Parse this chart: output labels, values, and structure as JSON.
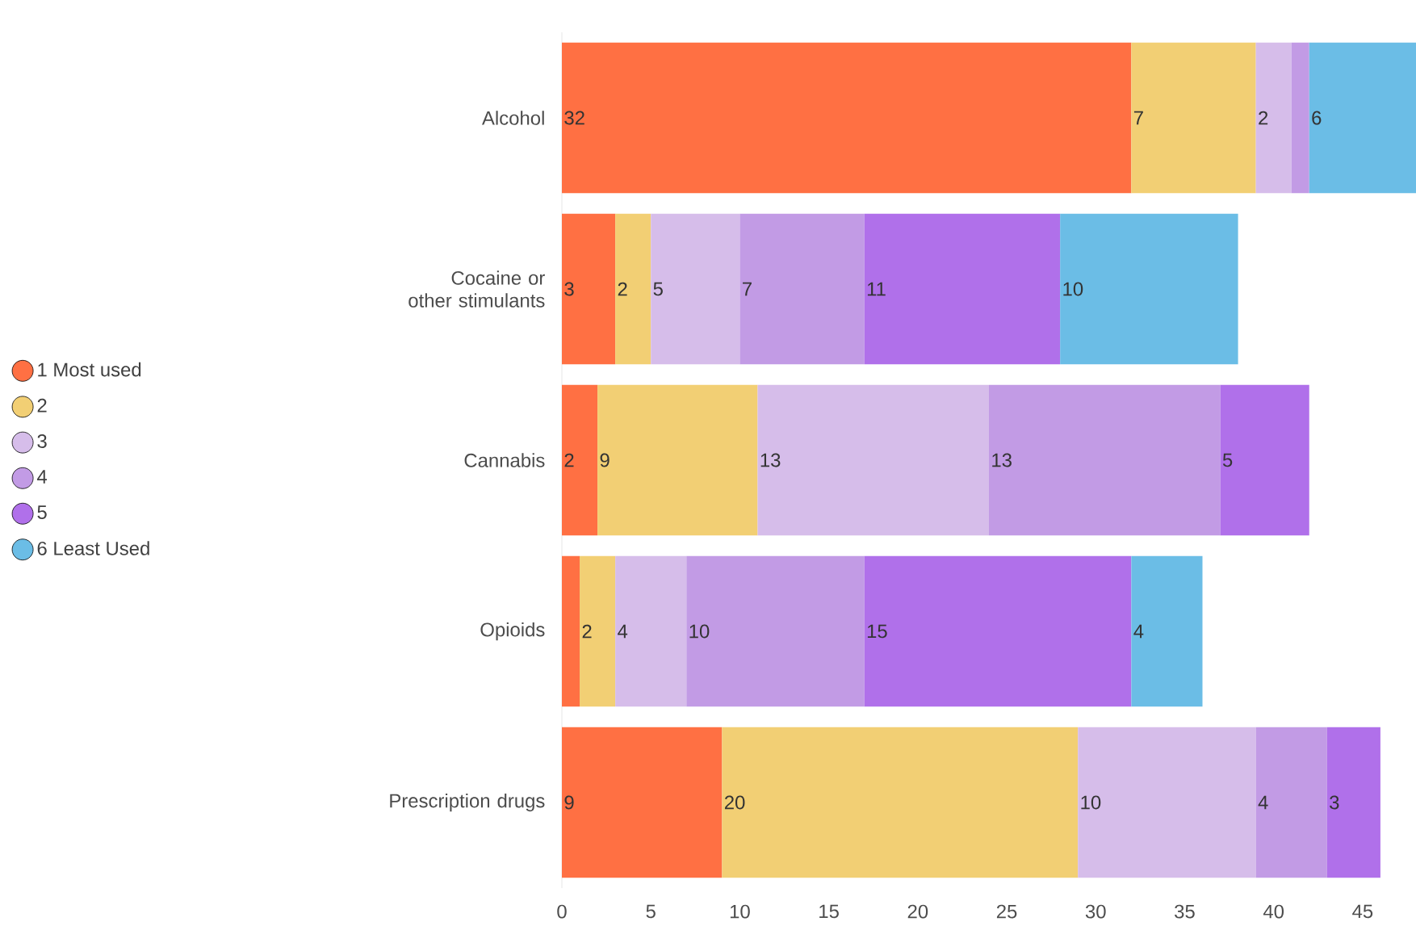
{
  "chart_data": {
    "type": "bar",
    "orientation": "horizontal",
    "stacked": true,
    "categories": [
      "Alcohol",
      "Cocaine or other stimulants",
      "Cannabis",
      "Opioids",
      "Prescription drugs"
    ],
    "series": [
      {
        "name": "1 Most used",
        "color": "#ff7043",
        "values": [
          32,
          3,
          2,
          1,
          9
        ],
        "value_labels": [
          "32",
          "3",
          "2",
          null,
          "9"
        ]
      },
      {
        "name": "2",
        "color": "#f2cf74",
        "values": [
          7,
          2,
          9,
          2,
          20
        ],
        "value_labels": [
          "7",
          "2",
          "9",
          "2",
          "20"
        ]
      },
      {
        "name": "3",
        "color": "#d6bdea",
        "values": [
          2,
          5,
          13,
          4,
          10
        ],
        "value_labels": [
          "2",
          "5",
          "13",
          "4",
          "10"
        ]
      },
      {
        "name": "4",
        "color": "#c29be5",
        "values": [
          1,
          7,
          13,
          10,
          4
        ],
        "value_labels": [
          null,
          "7",
          "13",
          "10",
          "4"
        ]
      },
      {
        "name": "5",
        "color": "#b070ea",
        "values": [
          null,
          11,
          5,
          15,
          3
        ],
        "value_labels": [
          null,
          "11",
          "5",
          "15",
          "3"
        ]
      },
      {
        "name": "6 Least Used",
        "color": "#6bbde6",
        "values": [
          6,
          10,
          null,
          4,
          null
        ],
        "value_labels": [
          "6",
          "10",
          null,
          "4",
          null
        ]
      }
    ],
    "xlim": [
      0,
      48
    ],
    "xticks": [
      0,
      5,
      10,
      15,
      20,
      25,
      30,
      35,
      40,
      45
    ],
    "legend": "left",
    "grid": false
  }
}
